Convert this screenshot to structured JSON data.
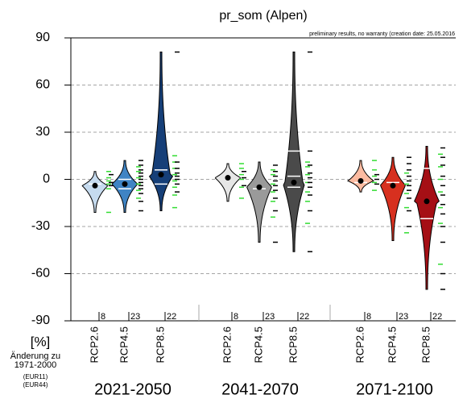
{
  "chart_data": {
    "type": "violin",
    "title": "pr_som  (Alpen)",
    "note": "preliminary results, no warranty (creation date: 25.05.2016",
    "ylabel": "[%]",
    "ylabel_sub": [
      "Änderung zu",
      "1971-2000"
    ],
    "legend": [
      {
        "name": "(EUR11)",
        "color": "#000000"
      },
      {
        "name": "(EUR44)",
        "color": "#33dd33"
      }
    ],
    "ylim": [
      -90,
      90
    ],
    "yticks": [
      -90,
      -60,
      -30,
      0,
      30,
      60,
      90
    ],
    "grid": true,
    "groups": [
      {
        "name": "2021-2050",
        "violins": [
          {
            "scenario": "RCP2.6",
            "color": "#c6dbef",
            "n": 8,
            "min": -21,
            "max": 5,
            "median": -4,
            "quartiles": [
              -3
            ],
            "eur11": [
              -4,
              -2,
              3
            ],
            "eur44": [
              -21,
              -6,
              -3,
              -1,
              1,
              5
            ]
          },
          {
            "scenario": "RCP4.5",
            "color": "#3f84c4",
            "n": 23,
            "min": -21,
            "max": 12,
            "median": -3,
            "quartiles": [
              -6,
              0
            ],
            "eur11": [
              -20,
              -14,
              -9,
              -6,
              -4,
              -2,
              0,
              2,
              4,
              6,
              9,
              12
            ],
            "eur44": [
              -12,
              -7,
              -3,
              1,
              5,
              8
            ]
          },
          {
            "scenario": "RCP8.5",
            "color": "#163f78",
            "n": 22,
            "min": -20,
            "max": 81,
            "median": 3,
            "quartiles": [
              -3,
              6
            ],
            "eur11": [
              -8,
              -3,
              0,
              2,
              4,
              7,
              11,
              81
            ],
            "eur44": [
              -18,
              -10,
              -5,
              -1,
              3,
              7,
              11,
              15
            ]
          }
        ]
      },
      {
        "name": "2041-2070",
        "violins": [
          {
            "scenario": "RCP2.6",
            "color": "#e6e6e6",
            "n": 8,
            "min": -14,
            "max": 10,
            "median": 1,
            "quartiles": [],
            "eur11": [
              -4,
              1,
              5
            ],
            "eur44": [
              -12,
              -5,
              0,
              3,
              7,
              10
            ]
          },
          {
            "scenario": "RCP4.5",
            "color": "#9a9a9a",
            "n": 23,
            "min": -40,
            "max": 11,
            "median": -5,
            "quartiles": [
              -6
            ],
            "eur11": [
              -40,
              -20,
              -12,
              -7,
              -4,
              -1,
              2,
              5,
              9
            ],
            "eur44": [
              -24,
              -14,
              -8,
              -3,
              3,
              6
            ]
          },
          {
            "scenario": "RCP8.5",
            "color": "#4a4a4a",
            "n": 22,
            "min": -46,
            "max": 81,
            "median": -2,
            "quartiles": [
              -5,
              2,
              18
            ],
            "eur11": [
              -46,
              -20,
              -10,
              -5,
              -2,
              1,
              4,
              9,
              18,
              81
            ],
            "eur44": [
              -28,
              -14,
              -8,
              -2,
              3,
              8,
              11
            ]
          }
        ]
      },
      {
        "name": "2071-2100",
        "violins": [
          {
            "scenario": "RCP2.6",
            "color": "#fcbba1",
            "n": 8,
            "min": -8,
            "max": 12,
            "median": -1,
            "quartiles": [
              -2
            ],
            "eur11": [
              -3,
              0,
              3
            ],
            "eur44": [
              -7,
              -2,
              2,
              6,
              12
            ]
          },
          {
            "scenario": "RCP4.5",
            "color": "#d7301f",
            "n": 23,
            "min": -39,
            "max": 14,
            "median": -4,
            "quartiles": [
              -2
            ],
            "eur11": [
              -30,
              -20,
              -12,
              -7,
              -4,
              -1,
              2,
              6,
              10,
              14
            ],
            "eur44": [
              -34,
              -18,
              -9,
              -3,
              4
            ]
          },
          {
            "scenario": "RCP8.5",
            "color": "#a50f15",
            "n": 22,
            "min": -70,
            "max": 21,
            "median": -14,
            "quartiles": [
              -25,
              7
            ],
            "eur11": [
              -70,
              -60,
              -40,
              -30,
              -22,
              -16,
              -10,
              -4,
              2,
              9,
              14,
              20
            ],
            "eur44": [
              -54,
              -28,
              -18,
              -8,
              0,
              8,
              16
            ]
          }
        ]
      }
    ]
  }
}
